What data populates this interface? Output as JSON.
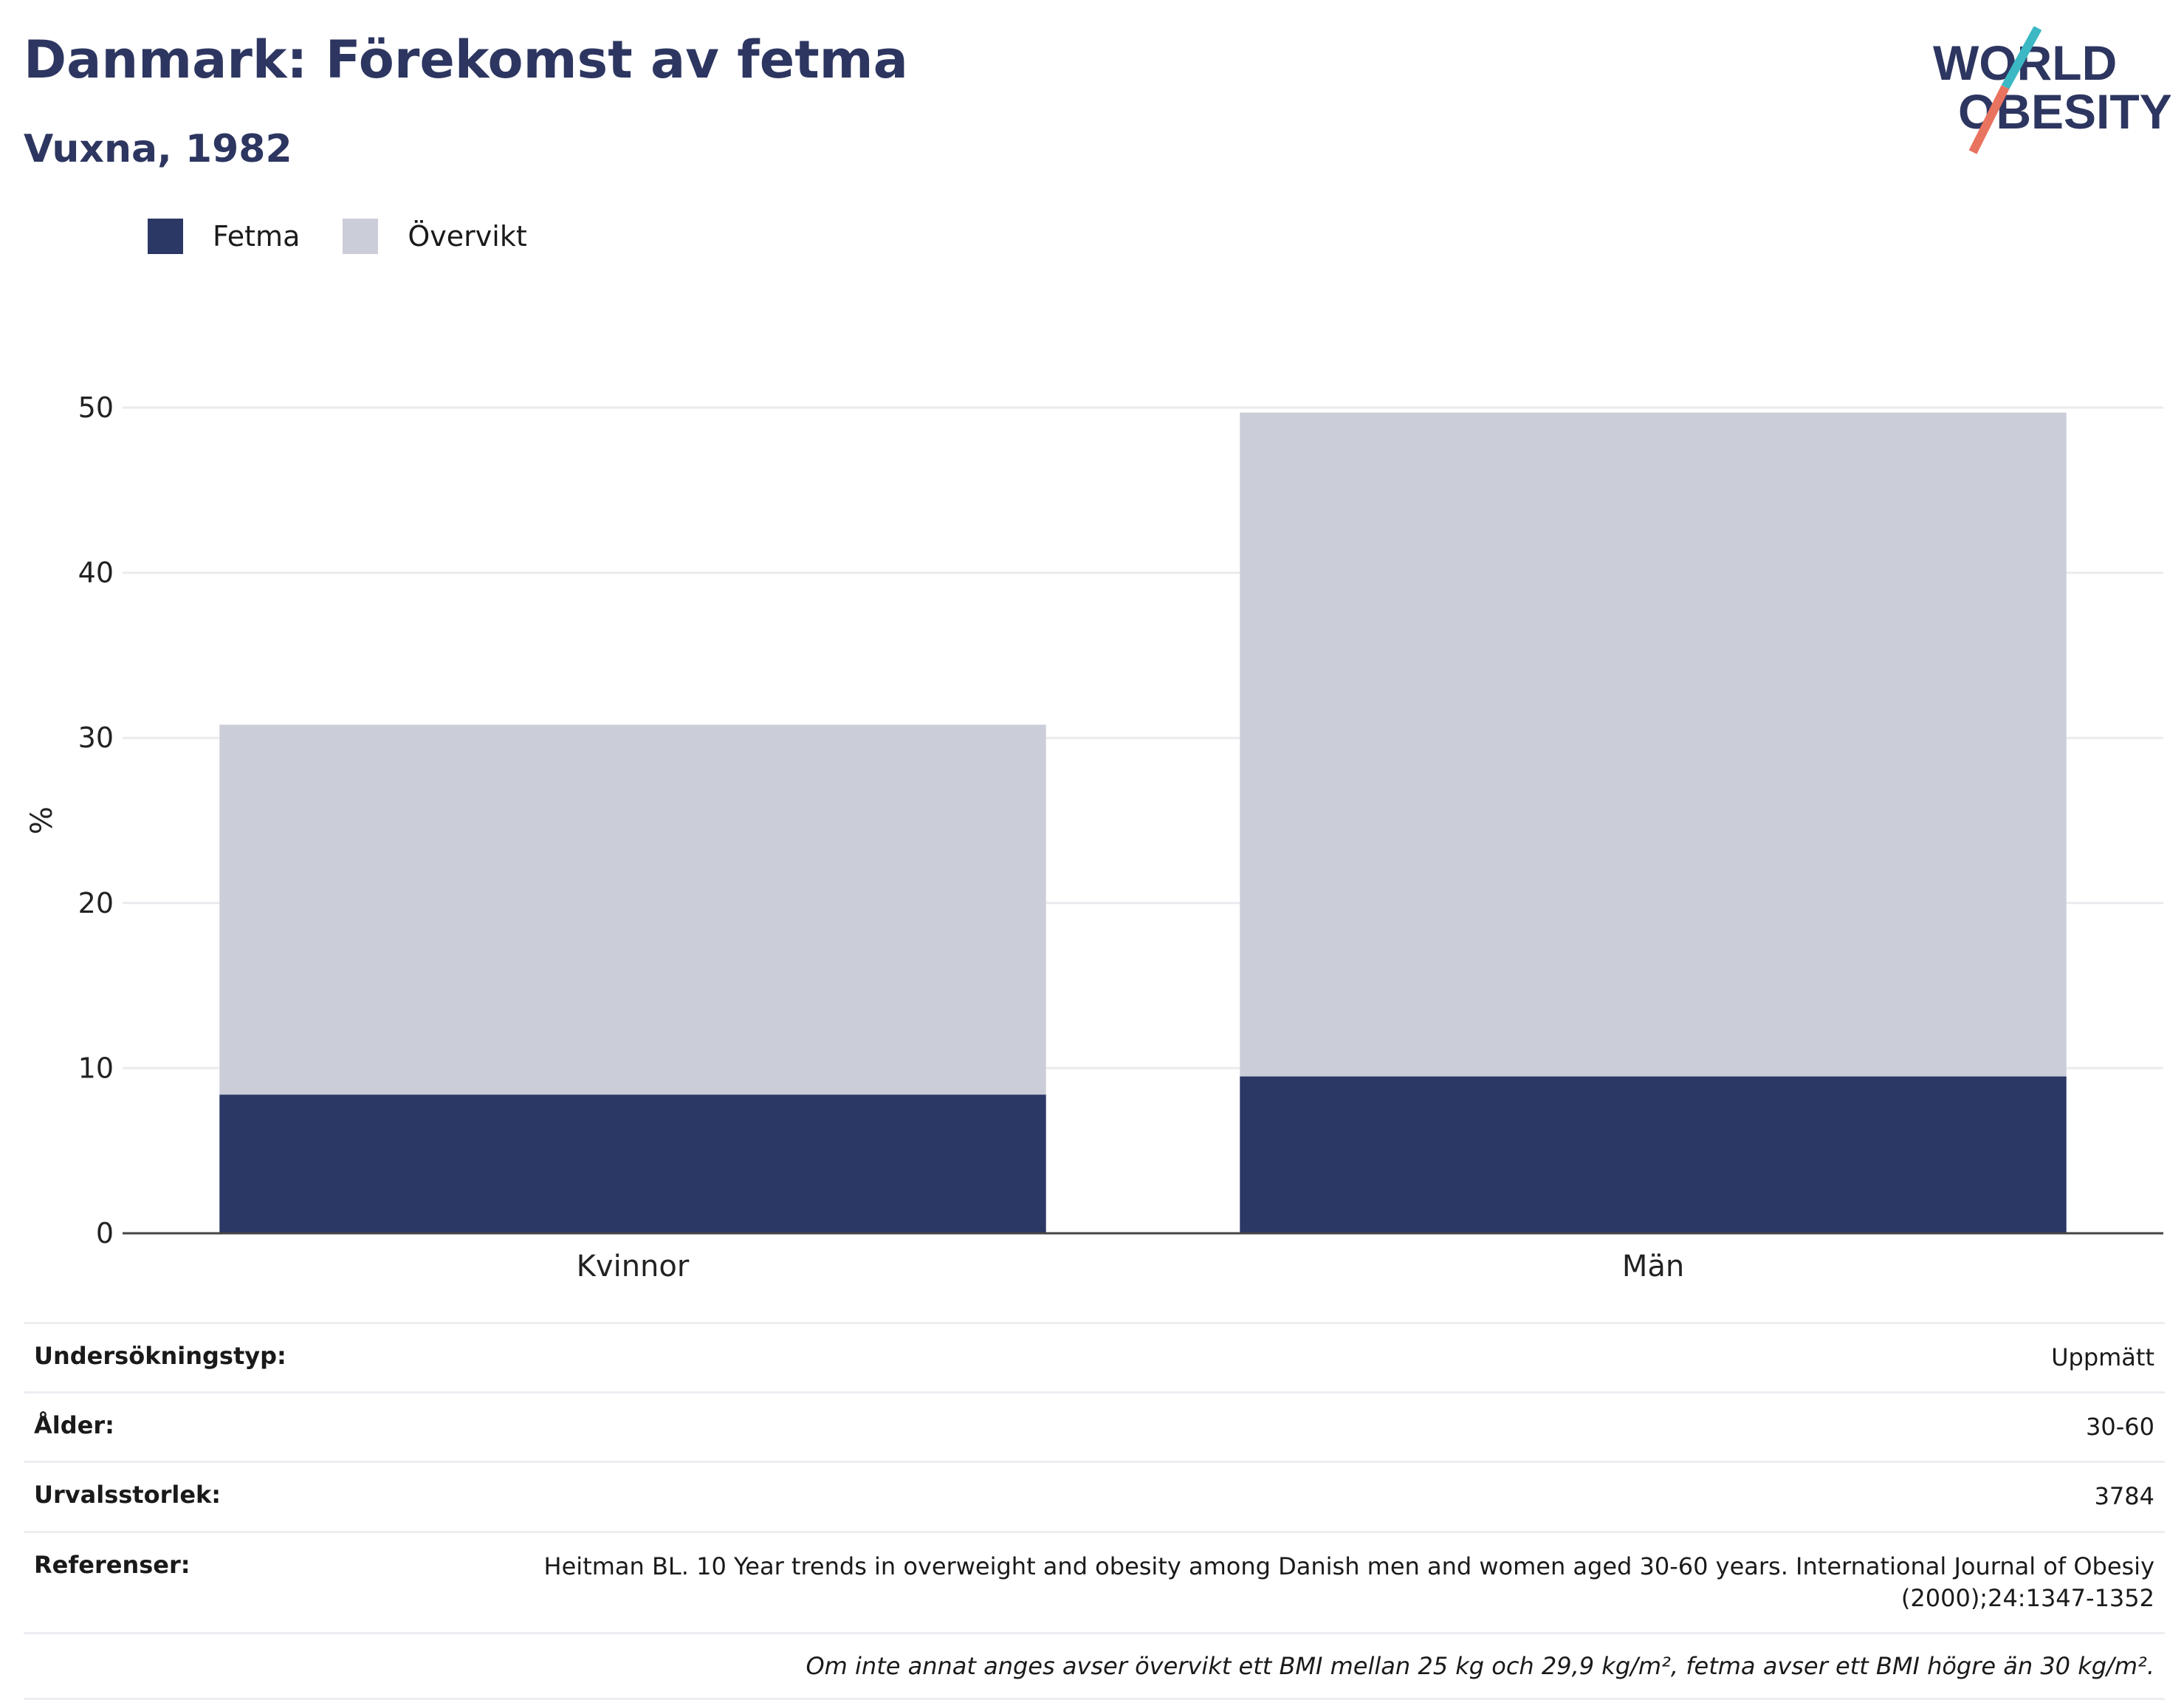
{
  "header": {
    "title": "Danmark: Förekomst av fetma",
    "subtitle": "Vuxna, 1982"
  },
  "logo": {
    "line1": "WORLD",
    "line2": "OBESITY",
    "colors": {
      "text": "#2d3660",
      "slash_top": "#3bb8c4",
      "slash_bottom": "#e8735f"
    }
  },
  "legend": {
    "items": [
      {
        "label": "Fetma",
        "color": "#2b3764"
      },
      {
        "label": "Övervikt",
        "color": "#cbcdd8"
      }
    ]
  },
  "chart_data": {
    "type": "bar",
    "stacked": true,
    "categories": [
      "Kvinnor",
      "Män"
    ],
    "series": [
      {
        "name": "Fetma",
        "values": [
          8.4,
          9.5
        ],
        "color": "#2b3764"
      },
      {
        "name": "Övervikt",
        "values": [
          22.4,
          40.2
        ],
        "color": "#cbcdd8"
      }
    ],
    "ylabel": "%",
    "ylim": [
      0,
      50
    ],
    "yticks": [
      0,
      10,
      20,
      30,
      40,
      50
    ],
    "grid": true,
    "legend_position": "top-left"
  },
  "info": {
    "rows": [
      {
        "label": "Undersökningstyp:",
        "value": "Uppmätt"
      },
      {
        "label": "Ålder:",
        "value": "30-60"
      },
      {
        "label": "Urvalsstorlek:",
        "value": "3784"
      },
      {
        "label": "Referenser:",
        "value": "Heitman BL. 10 Year trends in overweight and obesity among Danish men and women aged 30-60 years. International Journal of Obesiy (2000);24:1347-1352"
      }
    ],
    "note": "Om inte annat anges avser övervikt ett BMI mellan 25 kg och 29,9 kg/m², fetma avser ett BMI högre än 30 kg/m²."
  }
}
